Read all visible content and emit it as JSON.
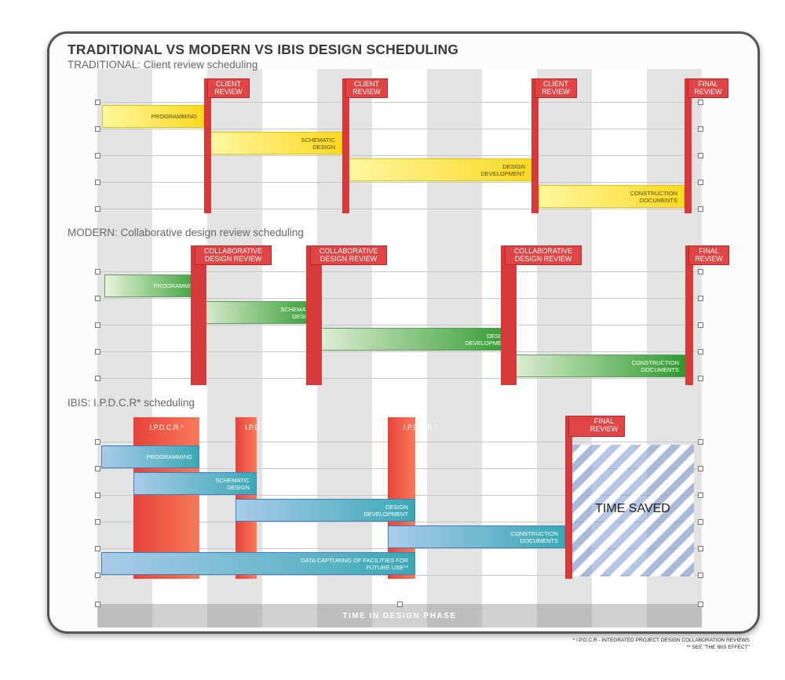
{
  "title": "TRADITIONAL VS MODERN VS IBIS DESIGN SCHEDULING",
  "sections": [
    {
      "heading": "TRADITIONAL: Client review scheduling"
    },
    {
      "heading": "MODERN: Collaborative design review scheduling"
    },
    {
      "heading": "IBIS: I.P.D.C.R* scheduling"
    }
  ],
  "traditional": {
    "bars": [
      {
        "label": "PROGRAMMING"
      },
      {
        "label": "SCHEMATIC DESIGN"
      },
      {
        "label": "DESIGN DEVELOPMENT"
      },
      {
        "label": "CONSTRUCTION DOCUMENTS"
      }
    ],
    "reviews": [
      "CLIENT REVIEW",
      "CLIENT REVIEW",
      "CLIENT REVIEW",
      "FINAL REVIEW"
    ]
  },
  "modern": {
    "bars": [
      {
        "label": "PROGRAMMING"
      },
      {
        "label": "SCHEMATIC DESIGN"
      },
      {
        "label": "DESIGN DEVELOPMENT"
      },
      {
        "label": "CONSTRUCTION DOCUMENTS"
      }
    ],
    "reviews": [
      "COLLABORATIVE DESIGN REVIEW",
      "COLLABORATIVE DESIGN REVIEW",
      "COLLABORATIVE DESIGN REVIEW",
      "FINAL REVIEW"
    ]
  },
  "ibis": {
    "bars": [
      {
        "label": "PROGRAMMING"
      },
      {
        "label": "SCHEMATIC DESIGN"
      },
      {
        "label": "DESIGN DEVELOPMENT"
      },
      {
        "label": "CONSTRUCTION DOCUMENTS"
      },
      {
        "label": "DATA CAPTURING OF FACILITIES FOR FUTURE USE**"
      }
    ],
    "reviews": [
      "I.P.D.C.R.*",
      "I.P.D.C.R.*",
      "I.P.D.C.R.*",
      "FINAL REVIEW"
    ],
    "time_saved": "TIME SAVED"
  },
  "axis_label": "TIME IN DESIGN PHASE",
  "footnotes": [
    "* I.P.D.C.R - INTEGRATED PROJECT DESIGN COLLABORATION REVIEWS",
    "** SEE \"THE IBIS EFFECT\""
  ],
  "colors": {
    "traditional_bar": "#f9d923",
    "modern_bar": "#2d9a2d",
    "ibis_bar": "#3aa9b4",
    "review": "#e04545",
    "time_saved": "#7896d2"
  }
}
